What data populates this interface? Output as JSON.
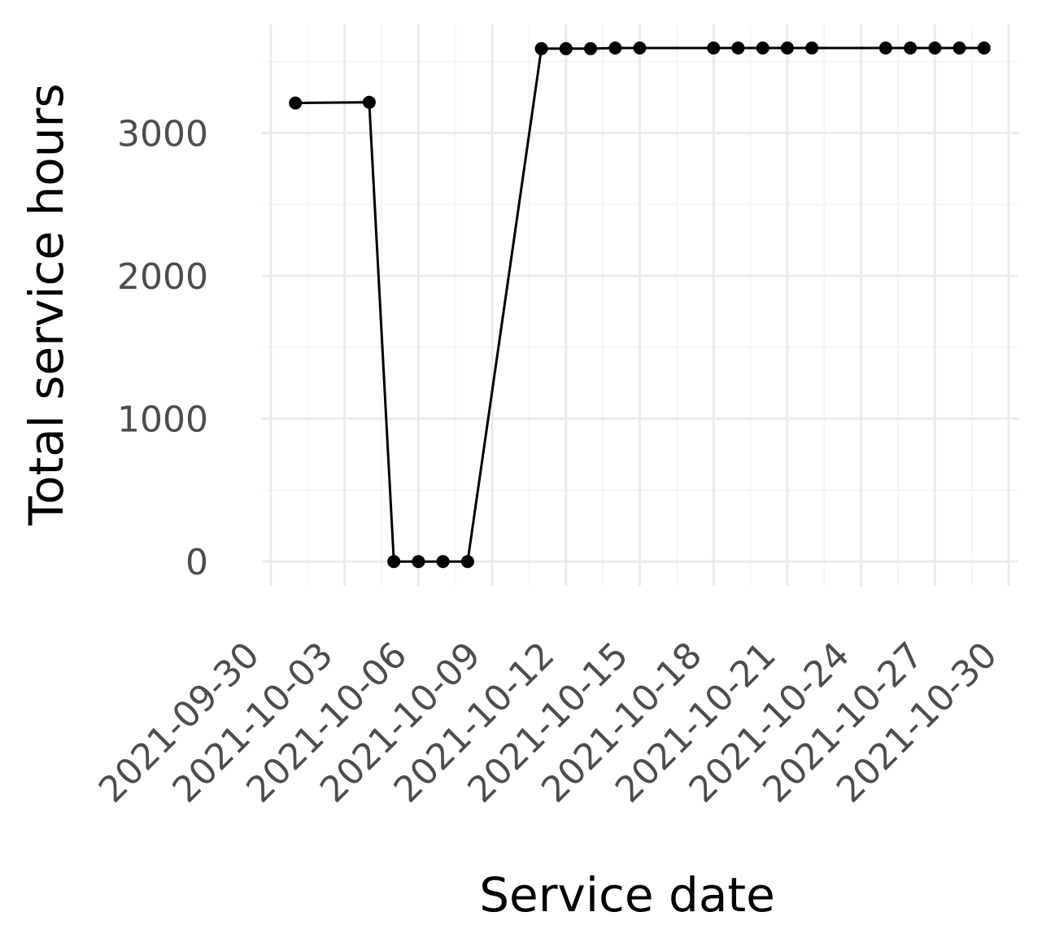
{
  "chart_data": {
    "type": "line",
    "xlabel": "Service date",
    "ylabel": "Total service hours",
    "x_tick_labels": [
      "2021-09-30",
      "2021-10-03",
      "2021-10-06",
      "2021-10-09",
      "2021-10-12",
      "2021-10-15",
      "2021-10-18",
      "2021-10-21",
      "2021-10-24",
      "2021-10-27",
      "2021-10-30"
    ],
    "y_tick_labels": [
      "0",
      "1000",
      "2000",
      "3000"
    ],
    "xlim": [
      "2021-09-30",
      "2021-10-30"
    ],
    "ylim": [
      -170,
      3760
    ],
    "grid": true,
    "line_color": "#000000",
    "series": [
      {
        "x": [
          "2021-10-01",
          "2021-10-04",
          "2021-10-05",
          "2021-10-06",
          "2021-10-07",
          "2021-10-08",
          "2021-10-11",
          "2021-10-12",
          "2021-10-13",
          "2021-10-14",
          "2021-10-15",
          "2021-10-18",
          "2021-10-19",
          "2021-10-20",
          "2021-10-21",
          "2021-10-22",
          "2021-10-25",
          "2021-10-26",
          "2021-10-27",
          "2021-10-28",
          "2021-10-29"
        ],
        "y": [
          3210,
          3215,
          0,
          0,
          0,
          0,
          3590,
          3590,
          3590,
          3595,
          3595,
          3595,
          3595,
          3595,
          3595,
          3595,
          3595,
          3595,
          3595,
          3595,
          3595
        ]
      }
    ]
  }
}
